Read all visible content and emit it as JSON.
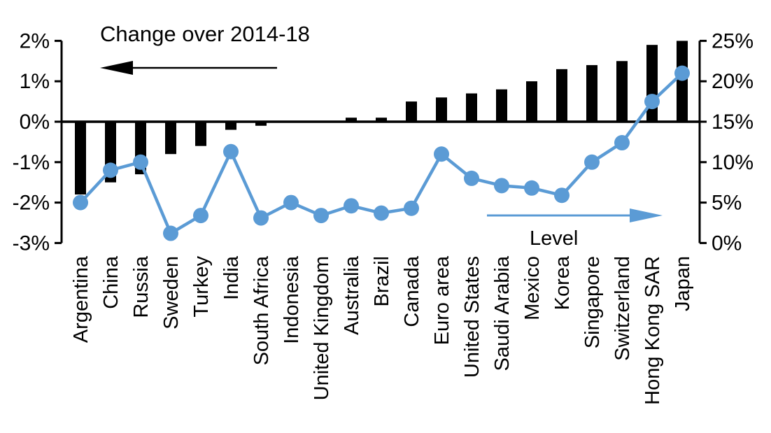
{
  "annotations": {
    "left_series_label": "Change over 2014-18",
    "right_series_label": "Level"
  },
  "colors": {
    "background": "#FFFFFF",
    "bar": "#000000",
    "line": "#5B9BD5",
    "axis": "#000000"
  },
  "chart_data": {
    "type": "combo-bar-line-dual-axis",
    "title": "",
    "xlabel": "",
    "ylabel_left": "Change over 2014-18",
    "ylabel_right": "Level",
    "grid": false,
    "legend_position": "in-plot annotations with arrows (left arrow = bars/left axis, right arrow = line/right axis)",
    "categories": [
      "Argentina",
      "China",
      "Russia",
      "Sweden",
      "Turkey",
      "India",
      "South Africa",
      "Indonesia",
      "United Kingdom",
      "Australia",
      "Brazil",
      "Canada",
      "Euro area",
      "United States",
      "Saudi Arabia",
      "Mexico",
      "Korea",
      "Singapore",
      "Switzerland",
      "Hong Kong SAR",
      "Japan"
    ],
    "series": [
      {
        "name": "Change over 2014-18",
        "type": "bar",
        "axis": "left",
        "color": "#000000",
        "unit": "%",
        "values": [
          -1.8,
          -1.5,
          -1.3,
          -0.8,
          -0.6,
          -0.2,
          -0.1,
          0,
          0,
          0.1,
          0.1,
          0.5,
          0.6,
          0.7,
          0.8,
          1.0,
          1.3,
          1.4,
          1.5,
          1.9,
          2.0
        ]
      },
      {
        "name": "Level",
        "type": "line",
        "axis": "right",
        "color": "#5B9BD5",
        "unit": "%",
        "marker": "circle",
        "values": [
          5,
          9,
          10,
          1.2,
          3.4,
          11.3,
          3.1,
          5,
          3.4,
          4.6,
          3.7,
          4.3,
          11,
          8,
          7.1,
          6.8,
          5.9,
          10,
          12.4,
          17.5,
          21
        ]
      }
    ],
    "left_axis": {
      "min": -3,
      "max": 2,
      "tick_values": [
        2,
        1,
        0,
        -1,
        -2,
        -3
      ],
      "tick_labels": [
        "2%",
        "1%",
        "0%",
        "-1%",
        "-2%",
        "-3%"
      ]
    },
    "right_axis": {
      "min": 0,
      "max": 25,
      "tick_values": [
        25,
        20,
        15,
        10,
        5,
        0
      ],
      "tick_labels": [
        "25%",
        "20%",
        "15%",
        "10%",
        "5%",
        "0%"
      ]
    }
  }
}
